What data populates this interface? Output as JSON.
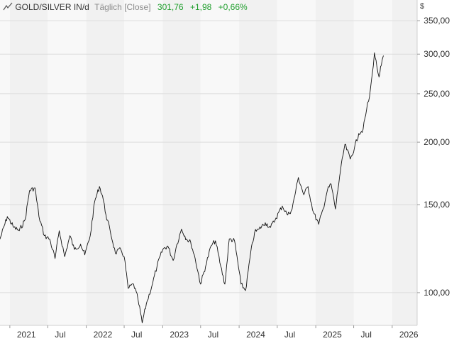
{
  "header": {
    "symbol": "GOLD/SILVER IN/d",
    "timeframe": "Täglich [Close]",
    "last": "301,76",
    "change": "+1,98",
    "change_pct": "+0,66%",
    "currency": "$",
    "icon": "line-chart-icon"
  },
  "colors": {
    "line": "#111111",
    "band_a": "#f8f8f8",
    "band_b": "#f1f1f1",
    "positive": "#1f9e2c"
  },
  "chart_data": {
    "type": "line",
    "title": "",
    "xlabel": "",
    "ylabel": "",
    "y_scale": "log",
    "ylim": [
      86,
      385
    ],
    "xlim": [
      "2020-11-15",
      "2026-04-30"
    ],
    "grid": true,
    "x_tick_labels": [
      {
        "date": "2021-01-01",
        "label": "2021"
      },
      {
        "date": "2021-07-01",
        "label": "Jul"
      },
      {
        "date": "2022-01-01",
        "label": "2022"
      },
      {
        "date": "2022-07-01",
        "label": "Jul"
      },
      {
        "date": "2023-01-01",
        "label": "2023"
      },
      {
        "date": "2023-07-01",
        "label": "Jul"
      },
      {
        "date": "2024-01-01",
        "label": "2024"
      },
      {
        "date": "2024-07-01",
        "label": "Jul"
      },
      {
        "date": "2025-01-01",
        "label": "2025"
      },
      {
        "date": "2025-07-01",
        "label": "Jul"
      },
      {
        "date": "2026-01-01",
        "label": "2026"
      }
    ],
    "y_ticks": [
      {
        "value": 100,
        "label": "100,00"
      },
      {
        "value": 150,
        "label": "150,00"
      },
      {
        "value": 200,
        "label": "200,00"
      },
      {
        "value": 250,
        "label": "250,00"
      },
      {
        "value": 300,
        "label": "300,00"
      },
      {
        "value": 350,
        "label": "350,00"
      }
    ],
    "series": [
      {
        "x": [
          "2020-11-15",
          "2020-12-20",
          "2021-01-20",
          "2021-02-15",
          "2021-03-15",
          "2021-04-05",
          "2021-05-01",
          "2021-05-20",
          "2021-06-15",
          "2021-07-10",
          "2021-08-05",
          "2021-08-25",
          "2021-09-20",
          "2021-10-15",
          "2021-11-05",
          "2021-12-05",
          "2021-12-25",
          "2022-01-20",
          "2022-02-10",
          "2022-03-05",
          "2022-03-20",
          "2022-04-05",
          "2022-04-25",
          "2022-05-20",
          "2022-06-15",
          "2022-07-01",
          "2022-07-20",
          "2022-08-15",
          "2022-09-05",
          "2022-09-25",
          "2022-10-15",
          "2022-11-10",
          "2022-12-05",
          "2023-01-01",
          "2023-01-25",
          "2023-02-20",
          "2023-03-10",
          "2023-04-01",
          "2023-04-25",
          "2023-05-15",
          "2023-06-05",
          "2023-07-01",
          "2023-07-25",
          "2023-08-20",
          "2023-09-10",
          "2023-10-05",
          "2023-10-25",
          "2023-11-15",
          "2023-12-10",
          "2024-01-10",
          "2024-02-01",
          "2024-02-25",
          "2024-03-15",
          "2024-04-05",
          "2024-05-05",
          "2024-05-30",
          "2024-06-25",
          "2024-07-25",
          "2024-08-20",
          "2024-09-10",
          "2024-10-10",
          "2024-11-05",
          "2024-11-25",
          "2024-12-20",
          "2025-01-15",
          "2025-02-05",
          "2025-02-25",
          "2025-03-15",
          "2025-04-05",
          "2025-04-25",
          "2025-05-20",
          "2025-06-15",
          "2025-07-05",
          "2025-07-25",
          "2025-08-15",
          "2025-09-01",
          "2025-09-15",
          "2025-09-28",
          "2025-10-08",
          "2025-10-20",
          "2025-10-30",
          "2025-11-10",
          "2025-11-20"
        ],
        "y": [
          128,
          142,
          135,
          133,
          140,
          160,
          162,
          142,
          130,
          128,
          117,
          133,
          118,
          130,
          122,
          125,
          119,
          130,
          152,
          163,
          156,
          143,
          133,
          120,
          122,
          118,
          102,
          104,
          97,
          87,
          95,
          103,
          113,
          122,
          124,
          116,
          125,
          134,
          128,
          126,
          117,
          104,
          113,
          124,
          127,
          113,
          104,
          128,
          127,
          104,
          101,
          120,
          132,
          134,
          138,
          135,
          141,
          149,
          143,
          147,
          170,
          157,
          163,
          145,
          137,
          147,
          160,
          165,
          147,
          171,
          198,
          185,
          195,
          208,
          212,
          233,
          247,
          274,
          302,
          283,
          270,
          285,
          298
        ]
      }
    ]
  }
}
